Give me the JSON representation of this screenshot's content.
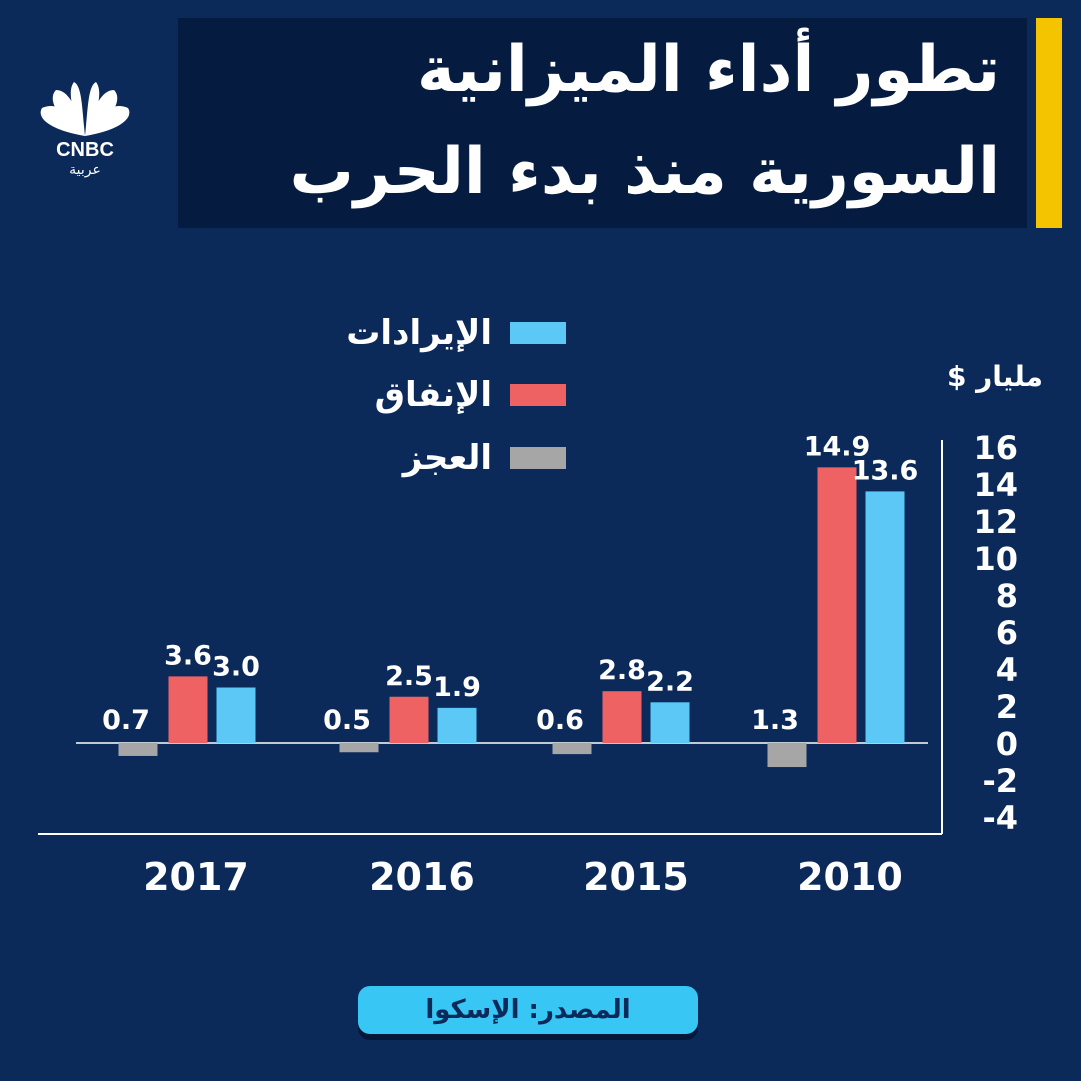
{
  "title": {
    "line1": "تطور أداء الميزانية",
    "line2": "السورية منذ بدء الحرب"
  },
  "logo": {
    "brand": "CNBC",
    "sub": "عربية",
    "icon": "peacock-logo-icon"
  },
  "unit_label": "مليار $",
  "source": "المصدر: الإسكوا",
  "colors": {
    "background": "#0b2a5a",
    "revenue": "#5bc8f5",
    "spending": "#ef6263",
    "deficit": "#a6a6a6",
    "accent": "#f5c400"
  },
  "chart_data": {
    "type": "bar",
    "categories": [
      "2017",
      "2016",
      "2015",
      "2010"
    ],
    "series": [
      {
        "name": "العجز",
        "key": "deficit",
        "values": [
          -0.7,
          -0.5,
          -0.6,
          -1.3
        ],
        "labels": [
          "0.7",
          "0.5",
          "0.6",
          "1.3"
        ]
      },
      {
        "name": "الإنفاق",
        "key": "spending",
        "values": [
          3.6,
          2.5,
          2.8,
          14.9
        ],
        "labels": [
          "3.6",
          "2.5",
          "2.8",
          "14.9"
        ]
      },
      {
        "name": "الإيرادات",
        "key": "revenue",
        "values": [
          3.0,
          1.9,
          2.2,
          13.6
        ],
        "labels": [
          "3.0",
          "1.9",
          "2.2",
          "13.6"
        ]
      }
    ],
    "legend": [
      "الإيرادات",
      "الإنفاق",
      "العجز"
    ],
    "ylim": [
      -4,
      16
    ],
    "yticks": [
      "16",
      "14",
      "12",
      "10",
      "8",
      "6",
      "4",
      "2",
      "0",
      "-2",
      "-4"
    ],
    "ylabel": "مليار $",
    "axis_position": "right",
    "legend_position": "top-left"
  }
}
